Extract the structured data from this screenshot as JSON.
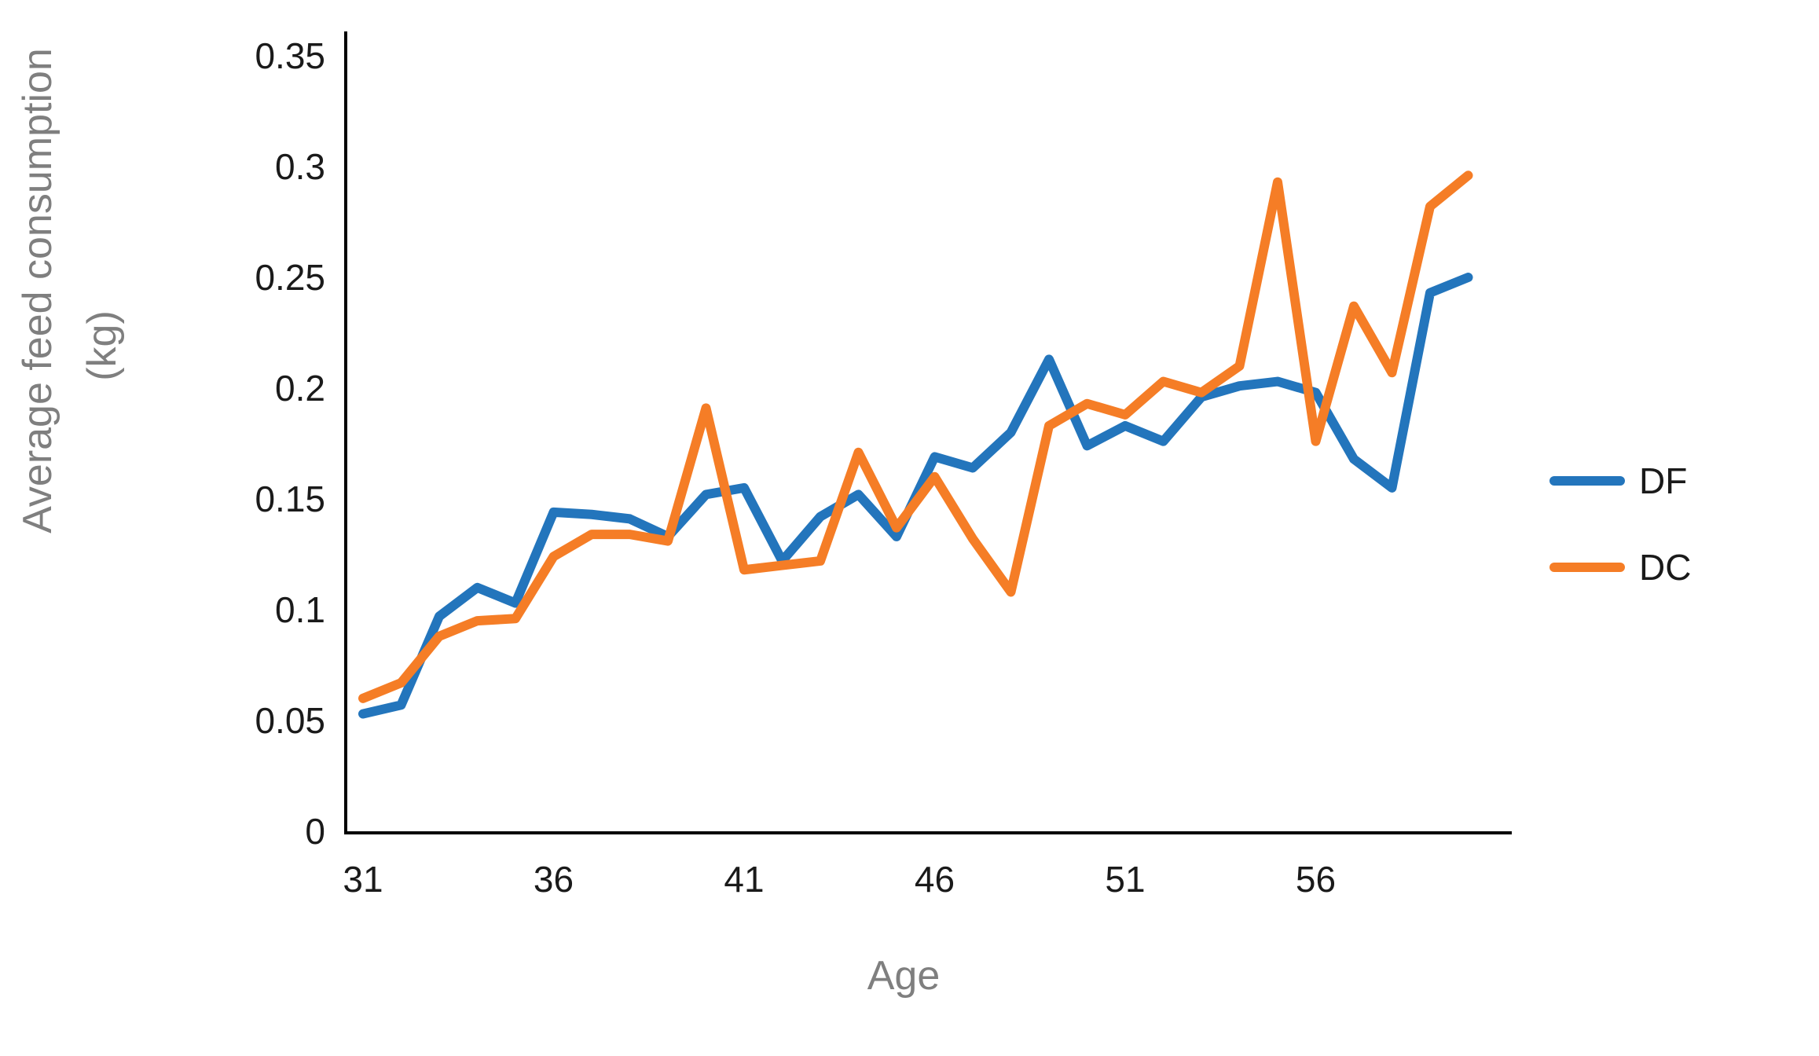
{
  "axes": {
    "y_title_line1": "Average feed consumption",
    "y_title_line2": "(kg)",
    "x_title": "Age",
    "y_tick_labels": [
      "0",
      "0.05",
      "0.1",
      "0.15",
      "0.2",
      "0.25",
      "0.3",
      "0.35"
    ],
    "x_tick_labels": [
      "31",
      "36",
      "41",
      "46",
      "51",
      "56"
    ],
    "axis_color": "#000000",
    "tick_label_color": "#1a1a1a",
    "title_color": "#7f7f7f"
  },
  "legend": {
    "items": [
      {
        "label": "DF",
        "color": "#2375BC"
      },
      {
        "label": "DC",
        "color": "#F57D26"
      }
    ]
  },
  "chart_data": {
    "type": "line",
    "title": "",
    "xlabel": "Age",
    "ylabel": "Average feed consumption (kg)",
    "x_start": 31,
    "x": [
      31,
      32,
      33,
      34,
      35,
      36,
      37,
      38,
      39,
      40,
      41,
      42,
      43,
      44,
      45,
      46,
      47,
      48,
      49,
      50,
      51,
      52,
      53,
      54,
      55,
      56,
      57,
      58,
      59,
      60
    ],
    "series": [
      {
        "name": "DF",
        "color": "#2375BC",
        "values": [
          0.053,
          0.057,
          0.097,
          0.11,
          0.103,
          0.144,
          0.143,
          0.141,
          0.133,
          0.152,
          0.155,
          0.122,
          0.142,
          0.152,
          0.133,
          0.169,
          0.164,
          0.18,
          0.213,
          0.174,
          0.183,
          0.176,
          0.196,
          0.201,
          0.203,
          0.198,
          0.168,
          0.155,
          0.243,
          0.25
        ]
      },
      {
        "name": "DC",
        "color": "#F57D26",
        "values": [
          0.06,
          0.067,
          0.088,
          0.095,
          0.096,
          0.124,
          0.134,
          0.134,
          0.131,
          0.191,
          0.118,
          0.12,
          0.122,
          0.171,
          0.137,
          0.16,
          0.132,
          0.108,
          0.183,
          0.193,
          0.188,
          0.203,
          0.198,
          0.21,
          0.293,
          0.176,
          0.237,
          0.207,
          0.282,
          0.296
        ]
      }
    ],
    "ylim": [
      0,
      0.35
    ],
    "y_tick_interval": 0.05,
    "xlim": [
      31,
      60.7
    ],
    "x_tick_interval": 5,
    "grid": false,
    "legend_position": "right"
  }
}
